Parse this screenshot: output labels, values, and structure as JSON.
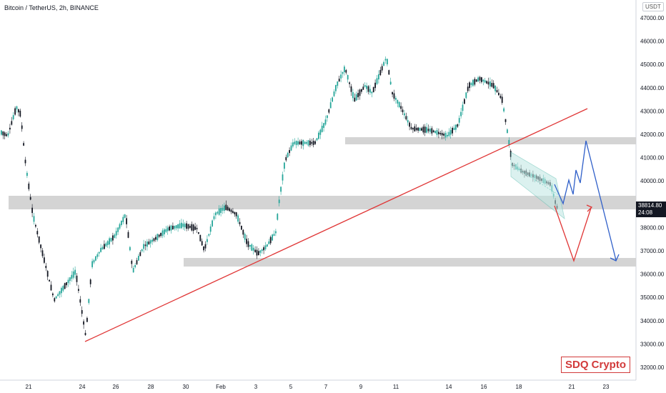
{
  "header": {
    "title": "Bitcoin / TetherUS, 2h, BINANCE",
    "currency": "USDT"
  },
  "price_axis": {
    "labels": [
      "47000.00",
      "46000.00",
      "45000.00",
      "44000.00",
      "43000.00",
      "42000.00",
      "41000.00",
      "40000.00",
      "39000.00",
      "38000.00",
      "37000.00",
      "36000.00",
      "35000.00",
      "34000.00",
      "33000.00",
      "32000.00"
    ],
    "current_price": "38814.80",
    "countdown": "24:08"
  },
  "time_axis": {
    "labels": [
      "21",
      "24",
      "26",
      "28",
      "30",
      "Feb",
      "3",
      "5",
      "7",
      "9",
      "11",
      "14",
      "16",
      "18",
      "21",
      "23"
    ]
  },
  "brand": {
    "label": "SDQ Crypto"
  },
  "colors": {
    "bull": "#26a69a",
    "bear": "#131722",
    "zone": "#c9c9c9",
    "trendline": "#e03636",
    "projection_red": "#e03636",
    "projection_blue": "#2f5fc9",
    "channel": "#7fd3c8"
  }
}
